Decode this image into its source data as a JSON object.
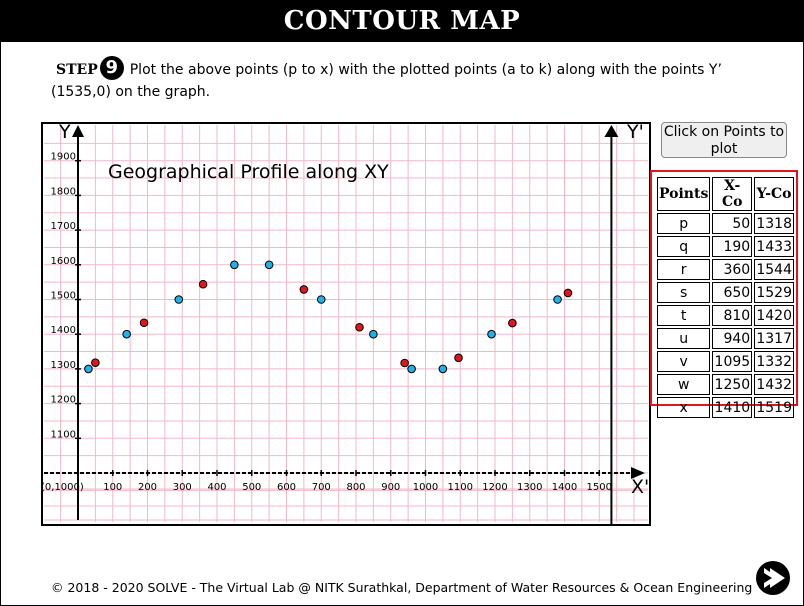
{
  "header": {
    "title": "CONTOUR MAP"
  },
  "step": {
    "label": "STEP",
    "number": "9",
    "instruction": "Plot the above points (p to x) with the plotted points (a to k) along with the points Y’ (1535,0) on the graph."
  },
  "plot_button": {
    "label": "Click on Points to plot"
  },
  "points_table": {
    "headers": [
      "Points",
      "X-Co",
      "Y-Co"
    ],
    "rows": [
      {
        "point": "p",
        "x": "50",
        "y": "1318"
      },
      {
        "point": "q",
        "x": "190",
        "y": "1433"
      },
      {
        "point": "r",
        "x": "360",
        "y": "1544"
      },
      {
        "point": "s",
        "x": "650",
        "y": "1529"
      },
      {
        "point": "t",
        "x": "810",
        "y": "1420"
      },
      {
        "point": "u",
        "x": "940",
        "y": "1317"
      },
      {
        "point": "v",
        "x": "1095",
        "y": "1332"
      },
      {
        "point": "w",
        "x": "1250",
        "y": "1432"
      },
      {
        "point": "x",
        "x": "1410",
        "y": "1519"
      }
    ]
  },
  "chart_data": {
    "type": "scatter",
    "title": "Geographical Profile along XY",
    "y_axis_name": "Y",
    "y_prime_name": "Y'",
    "x_axis_name": "X'",
    "origin_label": "(0,1000)",
    "x_tick_labels": [
      "100",
      "200",
      "300",
      "400",
      "500",
      "600",
      "700",
      "800",
      "900",
      "1000",
      "1100",
      "1200",
      "1300",
      "1400",
      "1500"
    ],
    "y_tick_labels": [
      "1100",
      "1200",
      "1300",
      "1400",
      "1500",
      "1600",
      "1700",
      "1800",
      "1900"
    ],
    "xlim": [
      0,
      1535
    ],
    "ylim": [
      1000,
      1900
    ],
    "grid": true,
    "series": [
      {
        "color": "#22b0e8",
        "points": [
          {
            "x": 30,
            "y": 1300
          },
          {
            "x": 140,
            "y": 1400
          },
          {
            "x": 290,
            "y": 1500
          },
          {
            "x": 450,
            "y": 1600
          },
          {
            "x": 550,
            "y": 1600
          },
          {
            "x": 700,
            "y": 1500
          },
          {
            "x": 850,
            "y": 1400
          },
          {
            "x": 960,
            "y": 1300
          },
          {
            "x": 1050,
            "y": 1300
          },
          {
            "x": 1190,
            "y": 1400
          },
          {
            "x": 1380,
            "y": 1500
          }
        ]
      },
      {
        "color": "#e0161e",
        "points": [
          {
            "x": 50,
            "y": 1318
          },
          {
            "x": 190,
            "y": 1433
          },
          {
            "x": 360,
            "y": 1544
          },
          {
            "x": 650,
            "y": 1529
          },
          {
            "x": 810,
            "y": 1420
          },
          {
            "x": 940,
            "y": 1317
          },
          {
            "x": 1095,
            "y": 1332
          },
          {
            "x": 1250,
            "y": 1432
          },
          {
            "x": 1410,
            "y": 1519
          }
        ]
      }
    ]
  },
  "footer": {
    "text": "© 2018 - 2020 SOLVE - The Virtual Lab @ NITK Surathkal, Department of Water Resources & Ocean Engineering"
  },
  "next_button": {
    "icon": "next-arrow-icon"
  },
  "colors": {
    "title_bg": "#000000",
    "grid": "#f2b8c6",
    "blue_point": "#22b0e8",
    "red_point": "#e0161e",
    "highlight_border": "#e0161e"
  }
}
